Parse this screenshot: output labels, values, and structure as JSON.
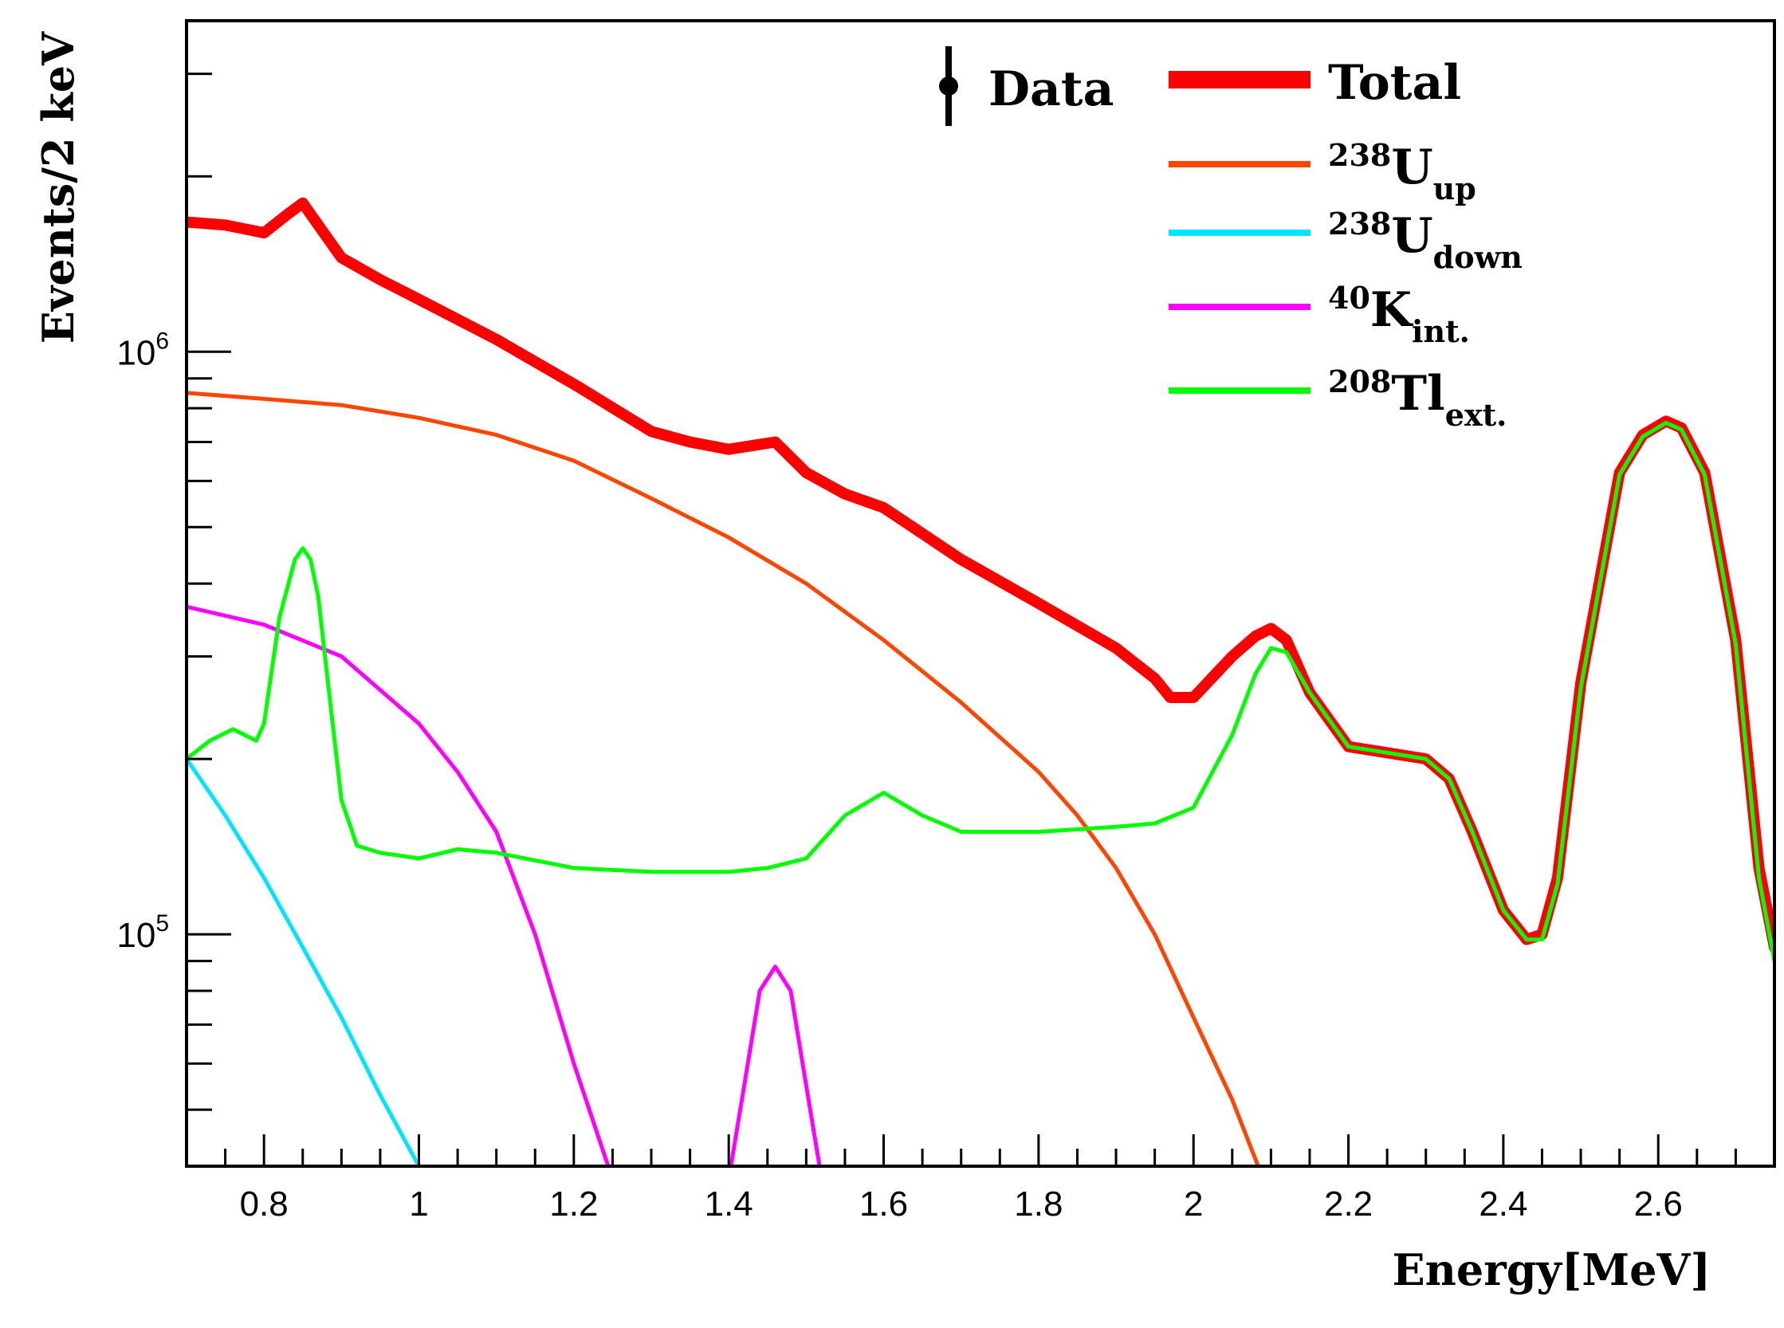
{
  "chart_data": {
    "type": "line",
    "title": "",
    "xlabel": "Energy[MeV]",
    "ylabel": "Events/2 keV",
    "xlim": [
      0.7,
      2.75
    ],
    "ylim": [
      40000,
      3700000
    ],
    "yscale": "log",
    "grid": false,
    "legend_position": "top-right",
    "x_ticks": [
      "0.8",
      "1",
      "1.2",
      "1.4",
      "1.6",
      "1.8",
      "2",
      "2.2",
      "2.4",
      "2.6"
    ],
    "y_ticks": [
      {
        "value": 100000,
        "base": "10",
        "exp": "5"
      },
      {
        "value": 1000000,
        "base": "10",
        "exp": "6"
      }
    ],
    "legend": [
      {
        "key": "data",
        "label": "Data",
        "color": "#000000",
        "style": "marker"
      },
      {
        "key": "total",
        "label": "Total",
        "color": "#ff0000",
        "style": "thick"
      },
      {
        "key": "u238up",
        "sup": "238",
        "main": "U",
        "sub": "up",
        "color": "#ff4500",
        "style": "line"
      },
      {
        "key": "u238down",
        "sup": "238",
        "main": "U",
        "sub": "down",
        "color": "#00e5ff",
        "style": "line"
      },
      {
        "key": "k40",
        "sup": "40",
        "main": "K",
        "sub": "int.",
        "color": "#ff00ff",
        "style": "line"
      },
      {
        "key": "tl208",
        "sup": "208",
        "main": "Tl",
        "sub": "ext.",
        "color": "#00ff00",
        "style": "line"
      }
    ],
    "series": [
      {
        "key": "data",
        "color": "#000000",
        "width": 6,
        "x": [
          0.7,
          0.75,
          0.8,
          0.83,
          0.85,
          0.87,
          0.9,
          0.95,
          1.0,
          1.1,
          1.2,
          1.3,
          1.35,
          1.4,
          1.43,
          1.46,
          1.5,
          1.55,
          1.6,
          1.7,
          1.8,
          1.9,
          1.95,
          1.97,
          2.0,
          2.05,
          2.08,
          2.1,
          2.12,
          2.15,
          2.2,
          2.25,
          2.3,
          2.33,
          2.36,
          2.4,
          2.43,
          2.45,
          2.47,
          2.5,
          2.55,
          2.58,
          2.61,
          2.63,
          2.66,
          2.7,
          2.73,
          2.75
        ],
        "y": [
          1670000,
          1650000,
          1600000,
          1720000,
          1800000,
          1650000,
          1450000,
          1330000,
          1230000,
          1050000,
          880000,
          730000,
          700000,
          680000,
          690000,
          700000,
          620000,
          570000,
          540000,
          440000,
          370000,
          310000,
          275000,
          255000,
          255000,
          300000,
          325000,
          335000,
          320000,
          260000,
          210000,
          205000,
          200000,
          185000,
          150000,
          110000,
          98000,
          100000,
          125000,
          270000,
          620000,
          720000,
          760000,
          740000,
          620000,
          320000,
          130000,
          95000
        ]
      },
      {
        "key": "total",
        "color": "#ff0000",
        "width": 14,
        "x": [
          0.7,
          0.75,
          0.8,
          0.83,
          0.85,
          0.87,
          0.9,
          0.95,
          1.0,
          1.1,
          1.2,
          1.3,
          1.35,
          1.4,
          1.43,
          1.46,
          1.5,
          1.55,
          1.6,
          1.7,
          1.8,
          1.9,
          1.95,
          1.97,
          2.0,
          2.05,
          2.08,
          2.1,
          2.12,
          2.15,
          2.2,
          2.25,
          2.3,
          2.33,
          2.36,
          2.4,
          2.43,
          2.45,
          2.47,
          2.5,
          2.55,
          2.58,
          2.61,
          2.63,
          2.66,
          2.7,
          2.73,
          2.75
        ],
        "y": [
          1670000,
          1650000,
          1600000,
          1720000,
          1800000,
          1650000,
          1450000,
          1330000,
          1230000,
          1050000,
          880000,
          730000,
          700000,
          680000,
          690000,
          700000,
          620000,
          570000,
          540000,
          440000,
          370000,
          310000,
          275000,
          255000,
          255000,
          300000,
          325000,
          335000,
          320000,
          260000,
          210000,
          205000,
          200000,
          185000,
          150000,
          110000,
          98000,
          100000,
          125000,
          270000,
          620000,
          720000,
          760000,
          740000,
          620000,
          320000,
          130000,
          95000
        ]
      },
      {
        "key": "u238up",
        "color": "#ff4500",
        "width": 5,
        "x": [
          0.7,
          0.8,
          0.9,
          1.0,
          1.1,
          1.2,
          1.3,
          1.4,
          1.5,
          1.6,
          1.7,
          1.8,
          1.85,
          1.9,
          1.95,
          2.0,
          2.05,
          2.09
        ],
        "y": [
          850000,
          830000,
          810000,
          770000,
          720000,
          650000,
          560000,
          480000,
          400000,
          320000,
          250000,
          190000,
          160000,
          130000,
          100000,
          72000,
          52000,
          38000
        ]
      },
      {
        "key": "u238down",
        "color": "#00e5ff",
        "width": 5,
        "x": [
          0.7,
          0.75,
          0.8,
          0.85,
          0.9,
          0.95,
          1.0
        ],
        "y": [
          200000,
          160000,
          125000,
          95000,
          72000,
          53000,
          40000
        ]
      },
      {
        "key": "k40_cont",
        "color": "#ff00ff",
        "width": 5,
        "x": [
          0.7,
          0.8,
          0.9,
          1.0,
          1.05,
          1.1,
          1.15,
          1.2,
          1.25
        ],
        "y": [
          365000,
          340000,
          300000,
          230000,
          190000,
          150000,
          100000,
          60000,
          38000
        ]
      },
      {
        "key": "k40_peak",
        "color": "#ff00ff",
        "width": 5,
        "x": [
          1.4,
          1.42,
          1.44,
          1.46,
          1.48,
          1.5,
          1.52
        ],
        "y": [
          38000,
          55000,
          80000,
          88000,
          80000,
          55000,
          38000
        ]
      },
      {
        "key": "tl208",
        "color": "#00ff00",
        "width": 5,
        "x": [
          0.7,
          0.73,
          0.76,
          0.79,
          0.8,
          0.82,
          0.84,
          0.85,
          0.86,
          0.87,
          0.88,
          0.9,
          0.92,
          0.95,
          1.0,
          1.05,
          1.1,
          1.2,
          1.3,
          1.4,
          1.45,
          1.5,
          1.55,
          1.6,
          1.65,
          1.7,
          1.8,
          1.9,
          1.95,
          2.0,
          2.05,
          2.08,
          2.1,
          2.12,
          2.15,
          2.2,
          2.25,
          2.3,
          2.33,
          2.36,
          2.4,
          2.43,
          2.45,
          2.47,
          2.5,
          2.55,
          2.58,
          2.61,
          2.63,
          2.66,
          2.7,
          2.73,
          2.75
        ],
        "y": [
          200000,
          215000,
          225000,
          215000,
          230000,
          350000,
          440000,
          460000,
          440000,
          380000,
          290000,
          170000,
          142000,
          138000,
          135000,
          140000,
          138000,
          130000,
          128000,
          128000,
          130000,
          135000,
          160000,
          175000,
          160000,
          150000,
          150000,
          153000,
          155000,
          165000,
          220000,
          280000,
          310000,
          305000,
          260000,
          210000,
          205000,
          200000,
          185000,
          150000,
          110000,
          98000,
          98000,
          122000,
          265000,
          615000,
          715000,
          755000,
          735000,
          615000,
          315000,
          125000,
          90000
        ]
      }
    ]
  }
}
